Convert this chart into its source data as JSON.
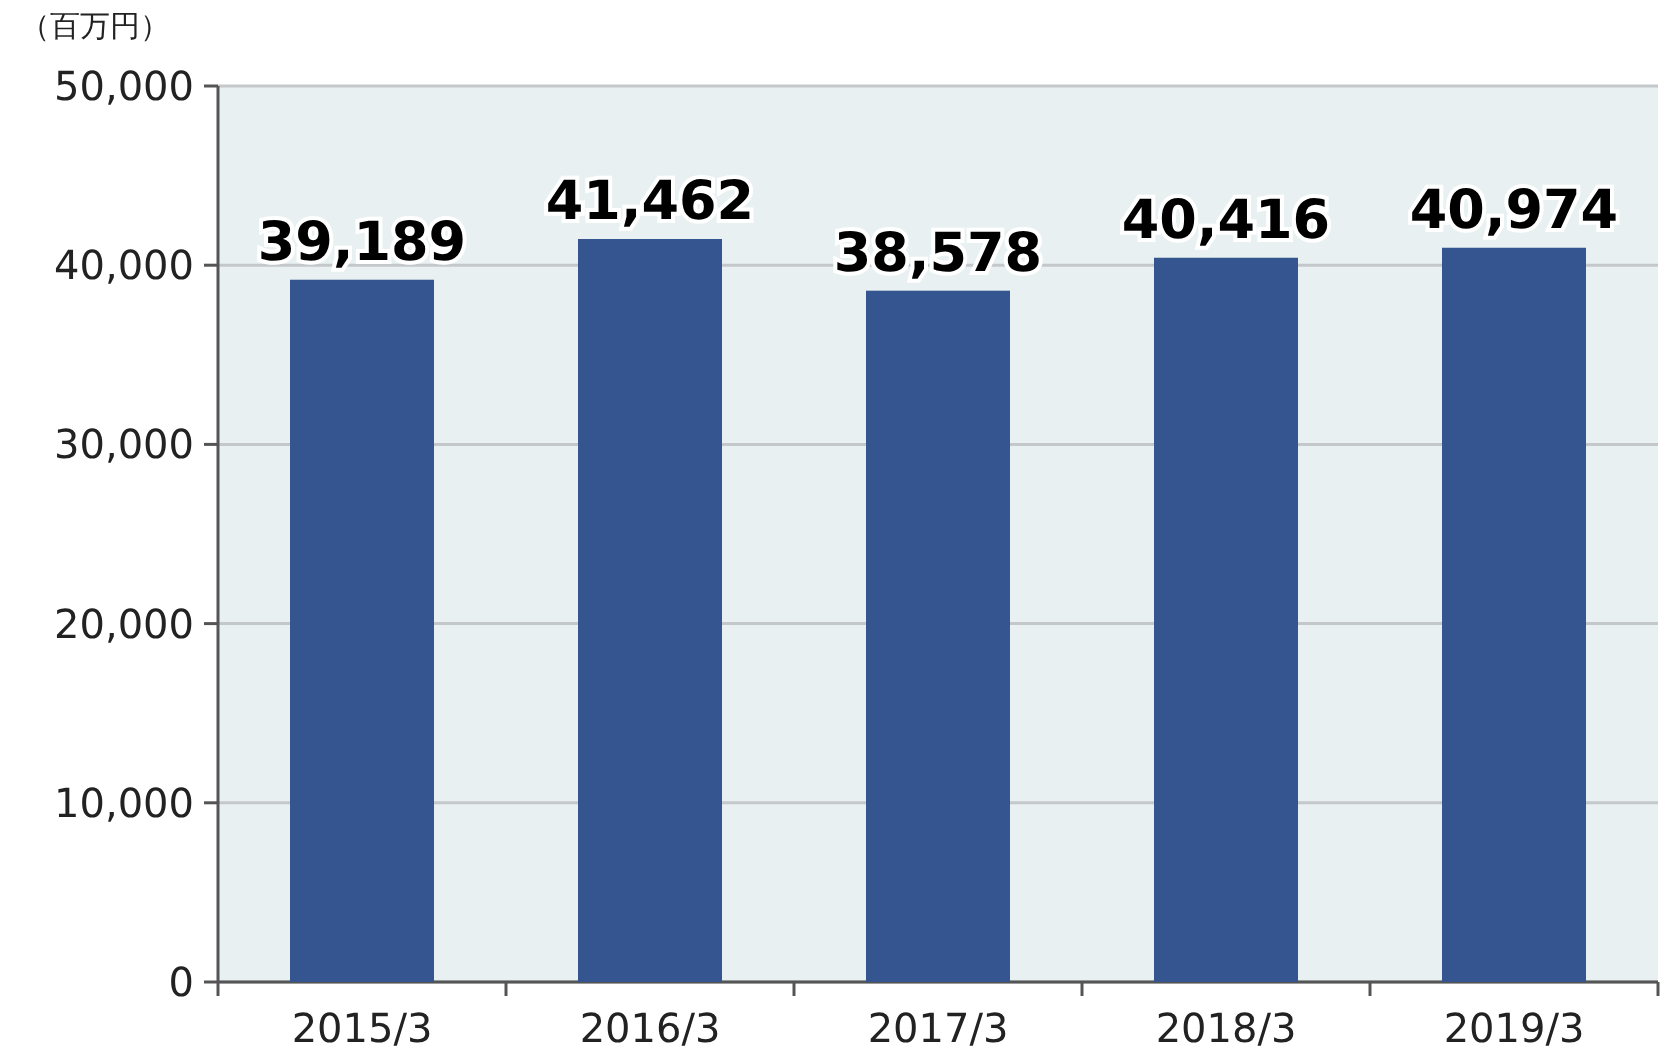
{
  "chart_data": {
    "type": "bar",
    "ylabel": "（百万円）",
    "categories": [
      "2015/3",
      "2016/3",
      "2017/3",
      "2018/3",
      "2019/3"
    ],
    "values": [
      39189,
      41462,
      38578,
      40416,
      40974
    ],
    "color": "#34558f",
    "ylim": [
      0,
      50000
    ],
    "yticks": [
      {
        "value": 0,
        "label": "0"
      },
      {
        "value": 10000,
        "label": "10,000"
      },
      {
        "value": 20000,
        "label": "20,000"
      },
      {
        "value": 30000,
        "label": "30,000"
      },
      {
        "value": 40000,
        "label": "40,000"
      },
      {
        "value": 50000,
        "label": "50,000"
      }
    ],
    "value_labels": [
      "39,189",
      "41,462",
      "38,578",
      "40,416",
      "40,974"
    ],
    "grid": "y"
  }
}
